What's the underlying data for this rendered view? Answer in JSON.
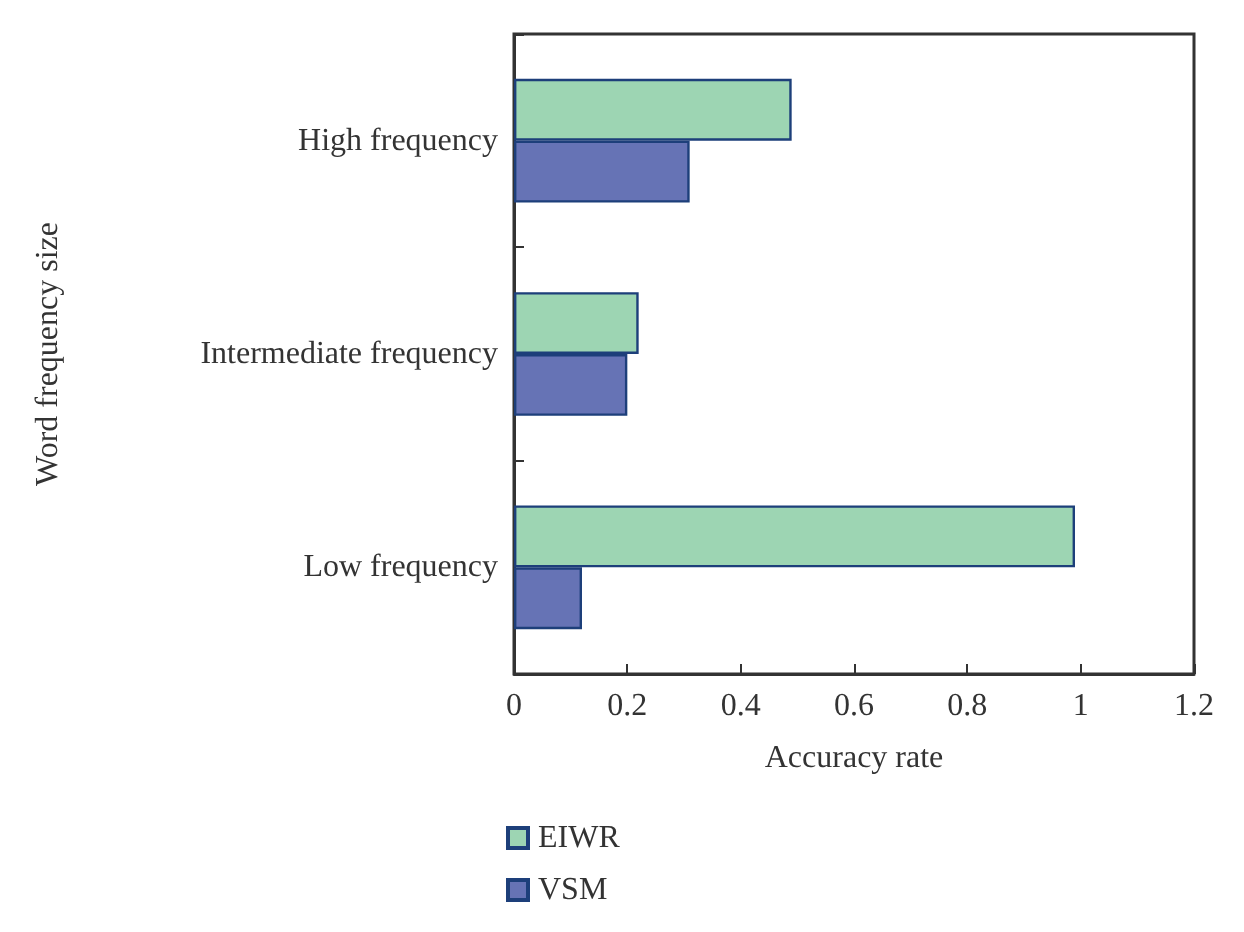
{
  "chart_data": {
    "type": "bar",
    "orientation": "horizontal",
    "xlabel": "Accuracy rate",
    "ylabel": "Word frequency size",
    "categories": [
      "High frequency",
      "Intermediate frequency",
      "Low frequency"
    ],
    "series": [
      {
        "name": "EIWR",
        "color": "#9dd5b3",
        "values": [
          0.49,
          0.22,
          0.99
        ]
      },
      {
        "name": "VSM",
        "color": "#6673b5",
        "values": [
          0.31,
          0.2,
          0.12
        ]
      }
    ],
    "xlim": [
      0,
      1.2
    ],
    "xticks": [
      0,
      0.2,
      0.4,
      0.6,
      0.8,
      1,
      1.2
    ],
    "grid": false,
    "legend": "bottom left"
  }
}
